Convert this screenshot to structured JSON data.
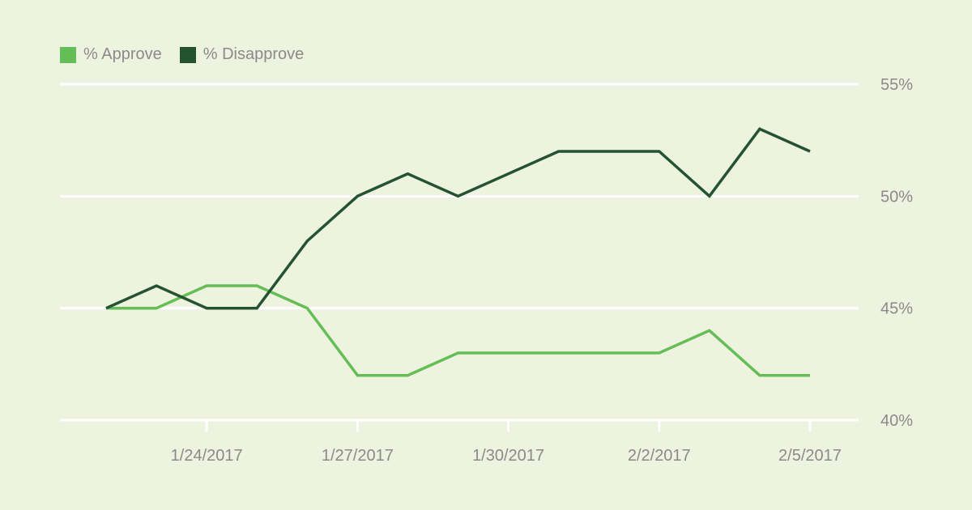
{
  "chart_data": {
    "type": "line",
    "title": "",
    "xlabel": "",
    "ylabel": "",
    "x": [
      "1/22/2017",
      "1/23/2017",
      "1/24/2017",
      "1/25/2017",
      "1/26/2017",
      "1/27/2017",
      "1/28/2017",
      "1/29/2017",
      "1/30/2017",
      "1/31/2017",
      "2/1/2017",
      "2/2/2017",
      "2/3/2017",
      "2/4/2017",
      "2/5/2017"
    ],
    "x_tick_labels": [
      "1/24/2017",
      "1/27/2017",
      "1/30/2017",
      "2/2/2017",
      "2/5/2017"
    ],
    "x_tick_index": [
      2,
      5,
      8,
      11,
      14
    ],
    "ylim": [
      40,
      55
    ],
    "y_ticks": [
      40,
      45,
      50,
      55
    ],
    "y_tick_labels": [
      "40%",
      "45%",
      "50%",
      "55%"
    ],
    "grid": true,
    "legend_position": "top-left",
    "series": [
      {
        "name": "% Approve",
        "color": "#64be55",
        "values": [
          45,
          45,
          46,
          46,
          45,
          42,
          42,
          43,
          43,
          43,
          43,
          43,
          44,
          42,
          42
        ]
      },
      {
        "name": "% Disapprove",
        "color": "#245332",
        "values": [
          45,
          46,
          45,
          45,
          48,
          50,
          51,
          50,
          51,
          52,
          52,
          52,
          50,
          53,
          52
        ]
      }
    ]
  }
}
